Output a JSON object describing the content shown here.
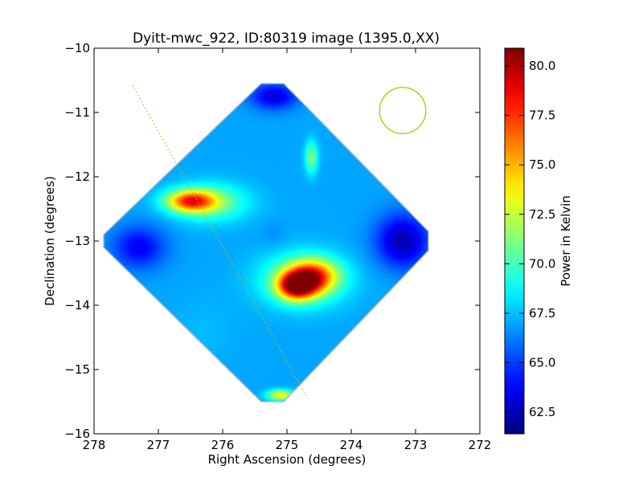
{
  "chart_data": {
    "type": "heatmap",
    "title": "Dyitt-mwc_922, ID:80319 image (1395.0,XX)",
    "xlabel": "Right Ascension (degrees)",
    "ylabel": "Declination (degrees)",
    "xlim": [
      278,
      272
    ],
    "ylim": [
      -16,
      -10
    ],
    "x_ticks": [
      278,
      277,
      276,
      275,
      274,
      273,
      272
    ],
    "y_ticks": [
      -10,
      -11,
      -12,
      -13,
      -14,
      -15,
      -16
    ],
    "x_tick_labels": [
      "278",
      "277",
      "276",
      "275",
      "274",
      "273",
      "272"
    ],
    "y_tick_labels": [
      "−10",
      "−11",
      "−12",
      "−13",
      "−14",
      "−15",
      "−16"
    ],
    "colormap": "jet",
    "background_value": 67,
    "map_outline": [
      [
        275.4,
        -10.55
      ],
      [
        275.05,
        -10.55
      ],
      [
        272.8,
        -12.85
      ],
      [
        272.8,
        -13.15
      ],
      [
        275.05,
        -15.5
      ],
      [
        275.4,
        -15.5
      ],
      [
        277.85,
        -13.1
      ],
      [
        277.85,
        -12.9
      ]
    ],
    "features": [
      {
        "ra": 276.5,
        "dec": -12.38,
        "value": 77.5,
        "width": 0.45,
        "height": 0.2
      },
      {
        "ra": 276.2,
        "dec": -12.4,
        "value": 72,
        "width": 0.7,
        "height": 0.35
      },
      {
        "ra": 274.85,
        "dec": -13.7,
        "value": 80.5,
        "width": 0.35,
        "height": 0.25
      },
      {
        "ra": 274.6,
        "dec": -13.55,
        "value": 77,
        "width": 0.45,
        "height": 0.3
      },
      {
        "ra": 274.75,
        "dec": -13.6,
        "value": 72,
        "width": 0.8,
        "height": 0.5
      },
      {
        "ra": 275.1,
        "dec": -15.4,
        "value": 75,
        "width": 0.25,
        "height": 0.1
      },
      {
        "ra": 274.62,
        "dec": -11.7,
        "value": 72,
        "width": 0.12,
        "height": 0.3
      },
      {
        "ra": 275.2,
        "dec": -12.9,
        "value": 66.5,
        "width": 0.25,
        "height": 0.25
      },
      {
        "ra": 273.2,
        "dec": -13.0,
        "value": 61.5,
        "width": 0.5,
        "height": 0.5
      },
      {
        "ra": 275.2,
        "dec": -10.75,
        "value": 62.5,
        "width": 0.45,
        "height": 0.25
      },
      {
        "ra": 277.3,
        "dec": -13.1,
        "value": 63,
        "width": 0.5,
        "height": 0.4
      },
      {
        "ra": 276.3,
        "dec": -14.4,
        "value": 67.5,
        "width": 0.6,
        "height": 0.6
      }
    ],
    "beam_circle": {
      "ra": 273.2,
      "dec": -10.97,
      "radius": 0.36
    },
    "dotted_line": [
      [
        277.4,
        -10.58
      ],
      [
        274.68,
        -15.45
      ]
    ],
    "overlay_color": "#bfbf00",
    "colorbar": {
      "label": "Power in Kelvin",
      "min": 61.4,
      "max": 80.9,
      "ticks": [
        62.5,
        65.0,
        67.5,
        70.0,
        72.5,
        75.0,
        77.5,
        80.0
      ],
      "tick_labels": [
        "62.5",
        "65.0",
        "67.5",
        "70.0",
        "72.5",
        "75.0",
        "77.5",
        "80.0"
      ]
    }
  }
}
